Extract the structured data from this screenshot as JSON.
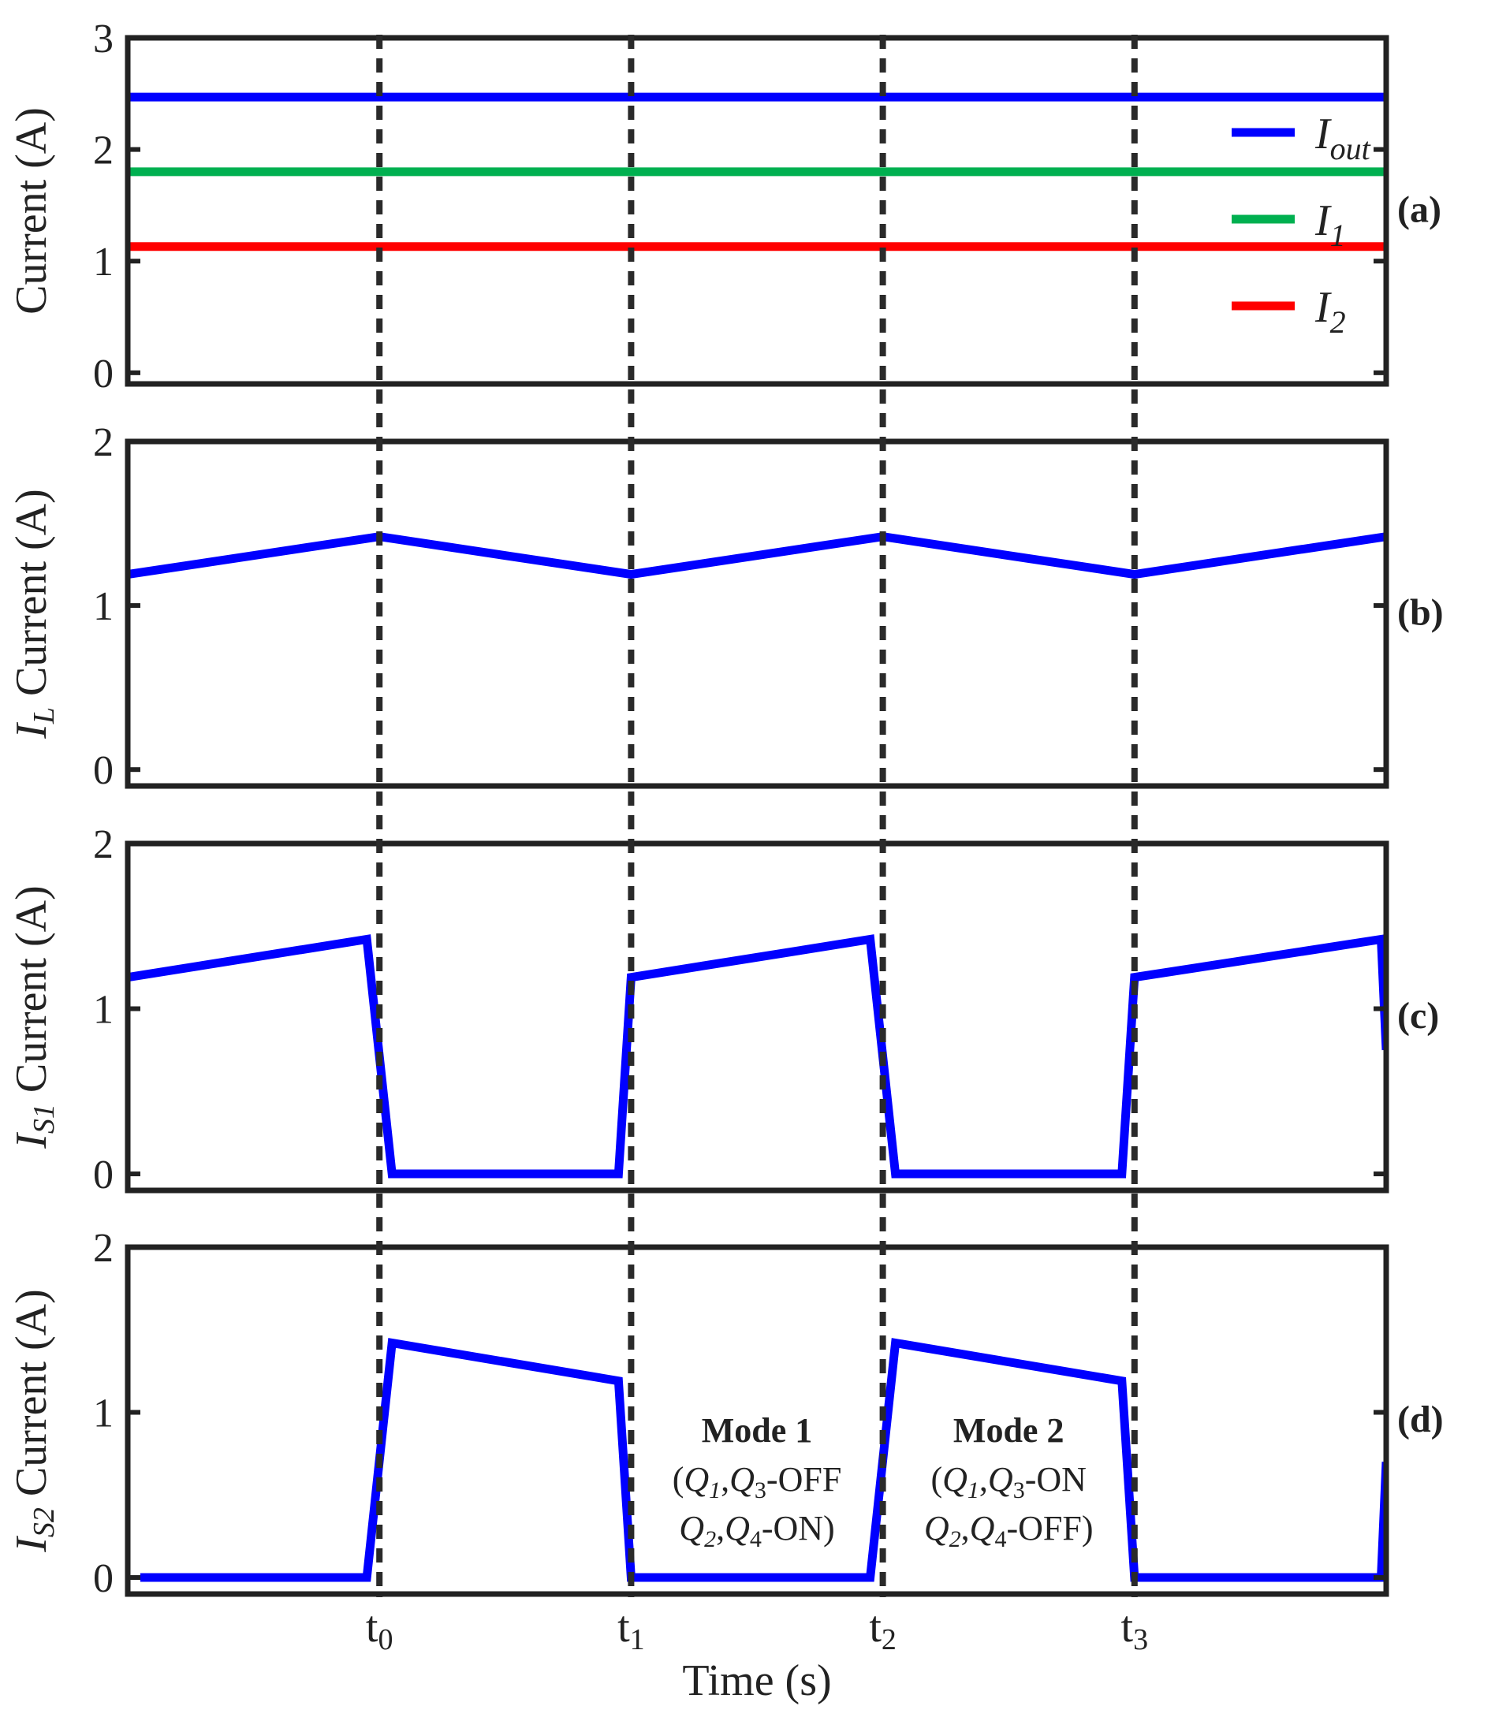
{
  "chart_data": {
    "type": "line",
    "xlabel": "Time (s)",
    "x_ticks": [
      {
        "main": "t",
        "sub": "0",
        "x": 1
      },
      {
        "main": "t",
        "sub": "1",
        "x": 2
      },
      {
        "main": "t",
        "sub": "2",
        "x": 3
      },
      {
        "main": "t",
        "sub": "3",
        "x": 4
      }
    ],
    "xlim": [
      0,
      5
    ],
    "panels": [
      {
        "id": "a",
        "tag": "(a)",
        "ylabel": "Current (A)",
        "ylabel_prefix": "",
        "ylabel_sub": "",
        "ylim": [
          -0.1,
          3.0
        ],
        "yticks": [
          0,
          1,
          2,
          3
        ],
        "legend": [
          {
            "main": "I",
            "sub": "out",
            "color": "#0000ff"
          },
          {
            "main": "I",
            "sub": "1",
            "color": "#00b050"
          },
          {
            "main": "I",
            "sub": "2",
            "color": "#ff0000"
          }
        ],
        "series": [
          {
            "name": "Iout",
            "color": "#0000ff",
            "x": [
              0,
              5
            ],
            "y": [
              2.47,
              2.47
            ]
          },
          {
            "name": "I1",
            "color": "#00b050",
            "x": [
              0,
              5
            ],
            "y": [
              1.8,
              1.8
            ]
          },
          {
            "name": "I2",
            "color": "#ff0000",
            "x": [
              0,
              5
            ],
            "y": [
              1.13,
              1.13
            ]
          }
        ]
      },
      {
        "id": "b",
        "tag": "(b)",
        "ylabel": "Current (A)",
        "ylabel_prefix": "I",
        "ylabel_sub": "L",
        "ylim": [
          -0.1,
          2.0
        ],
        "yticks": [
          0,
          1,
          2
        ],
        "series": [
          {
            "name": "IL",
            "color": "#0000ff",
            "x": [
              0,
              1,
              2,
              3,
              4,
              5
            ],
            "y": [
              1.19,
              1.42,
              1.19,
              1.42,
              1.19,
              1.42
            ]
          }
        ]
      },
      {
        "id": "c",
        "tag": "(c)",
        "ylabel": "Current (A)",
        "ylabel_prefix": "I",
        "ylabel_sub": "S1",
        "ylim": [
          -0.1,
          2.0
        ],
        "yticks": [
          0,
          1,
          2
        ],
        "series": [
          {
            "name": "IS1",
            "color": "#0000ff",
            "x": [
              0,
              0.95,
              1.05,
              1.95,
              2.0,
              2.95,
              3.05,
              3.95,
              4.0,
              4.98,
              5.0
            ],
            "y": [
              1.19,
              1.42,
              0,
              0,
              1.19,
              1.42,
              0,
              0,
              1.19,
              1.42,
              0.75
            ]
          }
        ]
      },
      {
        "id": "d",
        "tag": "(d)",
        "ylabel": "Current (A)",
        "ylabel_prefix": "I",
        "ylabel_sub": "S2",
        "ylim": [
          -0.1,
          2.0
        ],
        "yticks": [
          0,
          1,
          2
        ],
        "series": [
          {
            "name": "IS2",
            "color": "#0000ff",
            "x": [
              0.05,
              0.95,
              1.05,
              1.95,
              2.0,
              2.95,
              3.05,
              3.95,
              4.0,
              4.98,
              5.0
            ],
            "y": [
              0,
              0,
              1.42,
              1.19,
              0,
              0,
              1.42,
              1.19,
              0,
              0,
              0.7
            ]
          }
        ],
        "annotations": [
          {
            "title": "Mode 1",
            "line1": [
              "(",
              "Q",
              "1",
              ",",
              "Q",
              "3",
              "-OFF"
            ],
            "line2": [
              "",
              "Q",
              "2",
              ",",
              "Q",
              "4",
              "-ON)"
            ],
            "x": 2.5,
            "y": 0.82
          },
          {
            "title": "Mode 2",
            "line1": [
              "(",
              "Q",
              "1",
              ",",
              "Q",
              "3",
              "-ON"
            ],
            "line2": [
              "",
              "Q",
              "2",
              ",",
              "Q",
              "4",
              "-OFF)"
            ],
            "x": 3.5,
            "y": 0.82
          }
        ]
      }
    ]
  }
}
